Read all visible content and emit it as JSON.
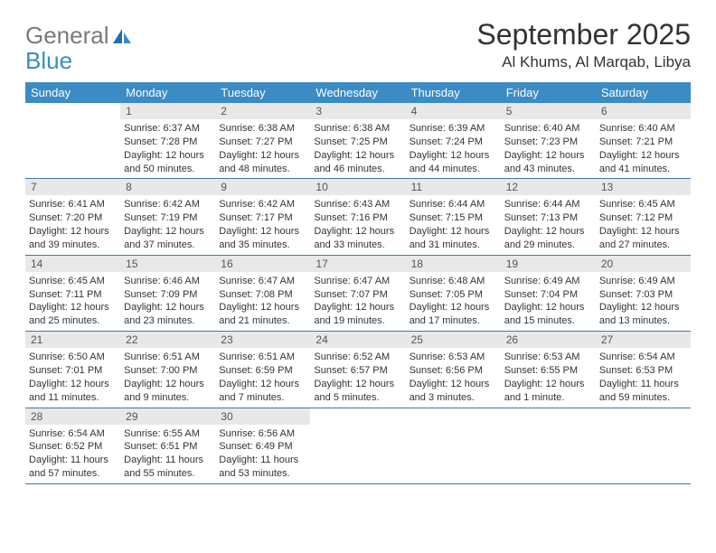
{
  "logo": {
    "text_general": "General",
    "text_blue": "Blue",
    "icon_color": "#1f6fb0"
  },
  "header": {
    "month_title": "September 2025",
    "location": "Al Khums, Al Marqab, Libya"
  },
  "colors": {
    "header_bg": "#3b8bc4",
    "header_text": "#ffffff",
    "day_num_bg": "#e8e8e8",
    "border": "#3b7aa8",
    "text": "#333333"
  },
  "day_names": [
    "Sunday",
    "Monday",
    "Tuesday",
    "Wednesday",
    "Thursday",
    "Friday",
    "Saturday"
  ],
  "weeks": [
    [
      {
        "num": "",
        "sunrise": "",
        "sunset": "",
        "daylight": ""
      },
      {
        "num": "1",
        "sunrise": "Sunrise: 6:37 AM",
        "sunset": "Sunset: 7:28 PM",
        "daylight": "Daylight: 12 hours and 50 minutes."
      },
      {
        "num": "2",
        "sunrise": "Sunrise: 6:38 AM",
        "sunset": "Sunset: 7:27 PM",
        "daylight": "Daylight: 12 hours and 48 minutes."
      },
      {
        "num": "3",
        "sunrise": "Sunrise: 6:38 AM",
        "sunset": "Sunset: 7:25 PM",
        "daylight": "Daylight: 12 hours and 46 minutes."
      },
      {
        "num": "4",
        "sunrise": "Sunrise: 6:39 AM",
        "sunset": "Sunset: 7:24 PM",
        "daylight": "Daylight: 12 hours and 44 minutes."
      },
      {
        "num": "5",
        "sunrise": "Sunrise: 6:40 AM",
        "sunset": "Sunset: 7:23 PM",
        "daylight": "Daylight: 12 hours and 43 minutes."
      },
      {
        "num": "6",
        "sunrise": "Sunrise: 6:40 AM",
        "sunset": "Sunset: 7:21 PM",
        "daylight": "Daylight: 12 hours and 41 minutes."
      }
    ],
    [
      {
        "num": "7",
        "sunrise": "Sunrise: 6:41 AM",
        "sunset": "Sunset: 7:20 PM",
        "daylight": "Daylight: 12 hours and 39 minutes."
      },
      {
        "num": "8",
        "sunrise": "Sunrise: 6:42 AM",
        "sunset": "Sunset: 7:19 PM",
        "daylight": "Daylight: 12 hours and 37 minutes."
      },
      {
        "num": "9",
        "sunrise": "Sunrise: 6:42 AM",
        "sunset": "Sunset: 7:17 PM",
        "daylight": "Daylight: 12 hours and 35 minutes."
      },
      {
        "num": "10",
        "sunrise": "Sunrise: 6:43 AM",
        "sunset": "Sunset: 7:16 PM",
        "daylight": "Daylight: 12 hours and 33 minutes."
      },
      {
        "num": "11",
        "sunrise": "Sunrise: 6:44 AM",
        "sunset": "Sunset: 7:15 PM",
        "daylight": "Daylight: 12 hours and 31 minutes."
      },
      {
        "num": "12",
        "sunrise": "Sunrise: 6:44 AM",
        "sunset": "Sunset: 7:13 PM",
        "daylight": "Daylight: 12 hours and 29 minutes."
      },
      {
        "num": "13",
        "sunrise": "Sunrise: 6:45 AM",
        "sunset": "Sunset: 7:12 PM",
        "daylight": "Daylight: 12 hours and 27 minutes."
      }
    ],
    [
      {
        "num": "14",
        "sunrise": "Sunrise: 6:45 AM",
        "sunset": "Sunset: 7:11 PM",
        "daylight": "Daylight: 12 hours and 25 minutes."
      },
      {
        "num": "15",
        "sunrise": "Sunrise: 6:46 AM",
        "sunset": "Sunset: 7:09 PM",
        "daylight": "Daylight: 12 hours and 23 minutes."
      },
      {
        "num": "16",
        "sunrise": "Sunrise: 6:47 AM",
        "sunset": "Sunset: 7:08 PM",
        "daylight": "Daylight: 12 hours and 21 minutes."
      },
      {
        "num": "17",
        "sunrise": "Sunrise: 6:47 AM",
        "sunset": "Sunset: 7:07 PM",
        "daylight": "Daylight: 12 hours and 19 minutes."
      },
      {
        "num": "18",
        "sunrise": "Sunrise: 6:48 AM",
        "sunset": "Sunset: 7:05 PM",
        "daylight": "Daylight: 12 hours and 17 minutes."
      },
      {
        "num": "19",
        "sunrise": "Sunrise: 6:49 AM",
        "sunset": "Sunset: 7:04 PM",
        "daylight": "Daylight: 12 hours and 15 minutes."
      },
      {
        "num": "20",
        "sunrise": "Sunrise: 6:49 AM",
        "sunset": "Sunset: 7:03 PM",
        "daylight": "Daylight: 12 hours and 13 minutes."
      }
    ],
    [
      {
        "num": "21",
        "sunrise": "Sunrise: 6:50 AM",
        "sunset": "Sunset: 7:01 PM",
        "daylight": "Daylight: 12 hours and 11 minutes."
      },
      {
        "num": "22",
        "sunrise": "Sunrise: 6:51 AM",
        "sunset": "Sunset: 7:00 PM",
        "daylight": "Daylight: 12 hours and 9 minutes."
      },
      {
        "num": "23",
        "sunrise": "Sunrise: 6:51 AM",
        "sunset": "Sunset: 6:59 PM",
        "daylight": "Daylight: 12 hours and 7 minutes."
      },
      {
        "num": "24",
        "sunrise": "Sunrise: 6:52 AM",
        "sunset": "Sunset: 6:57 PM",
        "daylight": "Daylight: 12 hours and 5 minutes."
      },
      {
        "num": "25",
        "sunrise": "Sunrise: 6:53 AM",
        "sunset": "Sunset: 6:56 PM",
        "daylight": "Daylight: 12 hours and 3 minutes."
      },
      {
        "num": "26",
        "sunrise": "Sunrise: 6:53 AM",
        "sunset": "Sunset: 6:55 PM",
        "daylight": "Daylight: 12 hours and 1 minute."
      },
      {
        "num": "27",
        "sunrise": "Sunrise: 6:54 AM",
        "sunset": "Sunset: 6:53 PM",
        "daylight": "Daylight: 11 hours and 59 minutes."
      }
    ],
    [
      {
        "num": "28",
        "sunrise": "Sunrise: 6:54 AM",
        "sunset": "Sunset: 6:52 PM",
        "daylight": "Daylight: 11 hours and 57 minutes."
      },
      {
        "num": "29",
        "sunrise": "Sunrise: 6:55 AM",
        "sunset": "Sunset: 6:51 PM",
        "daylight": "Daylight: 11 hours and 55 minutes."
      },
      {
        "num": "30",
        "sunrise": "Sunrise: 6:56 AM",
        "sunset": "Sunset: 6:49 PM",
        "daylight": "Daylight: 11 hours and 53 minutes."
      },
      {
        "num": "",
        "sunrise": "",
        "sunset": "",
        "daylight": ""
      },
      {
        "num": "",
        "sunrise": "",
        "sunset": "",
        "daylight": ""
      },
      {
        "num": "",
        "sunrise": "",
        "sunset": "",
        "daylight": ""
      },
      {
        "num": "",
        "sunrise": "",
        "sunset": "",
        "daylight": ""
      }
    ]
  ]
}
